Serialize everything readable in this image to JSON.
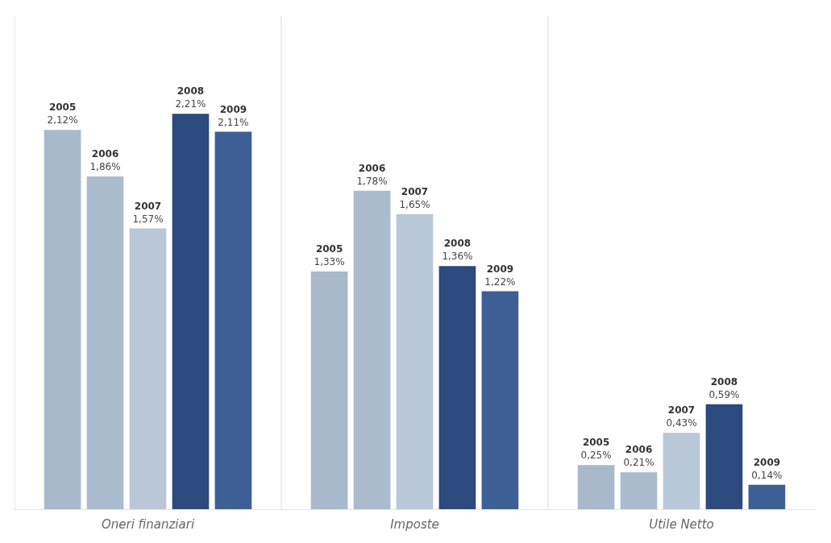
{
  "chart_data": {
    "type": "bar",
    "categories": [
      "Oneri finanziari",
      "Imposte",
      "Utile Netto"
    ],
    "series": [
      {
        "name": "2005",
        "color": "#a8b9cc",
        "values": [
          2.12,
          1.33,
          0.25
        ],
        "value_labels": [
          "2,12%",
          "1,33%",
          "0,25%"
        ]
      },
      {
        "name": "2006",
        "color": "#aabcce",
        "values": [
          1.86,
          1.78,
          0.21
        ],
        "value_labels": [
          "1,86%",
          "1,78%",
          "0,21%"
        ]
      },
      {
        "name": "2007",
        "color": "#b8c8d8",
        "values": [
          1.57,
          1.65,
          0.43
        ],
        "value_labels": [
          "1,57%",
          "1,65%",
          "0,43%"
        ]
      },
      {
        "name": "2008",
        "color": "#2c4a7e",
        "values": [
          2.21,
          1.36,
          0.59
        ],
        "value_labels": [
          "2,21%",
          "1,36%",
          "0,59%"
        ]
      },
      {
        "name": "2009",
        "color": "#3d5f96",
        "values": [
          2.11,
          1.22,
          0.14
        ],
        "value_labels": [
          "2,11%",
          "1,22%",
          "0,14%"
        ]
      }
    ],
    "ylim": [
      0,
      2.75
    ],
    "grid": false,
    "data_labels": true,
    "tick_labels": "x"
  }
}
